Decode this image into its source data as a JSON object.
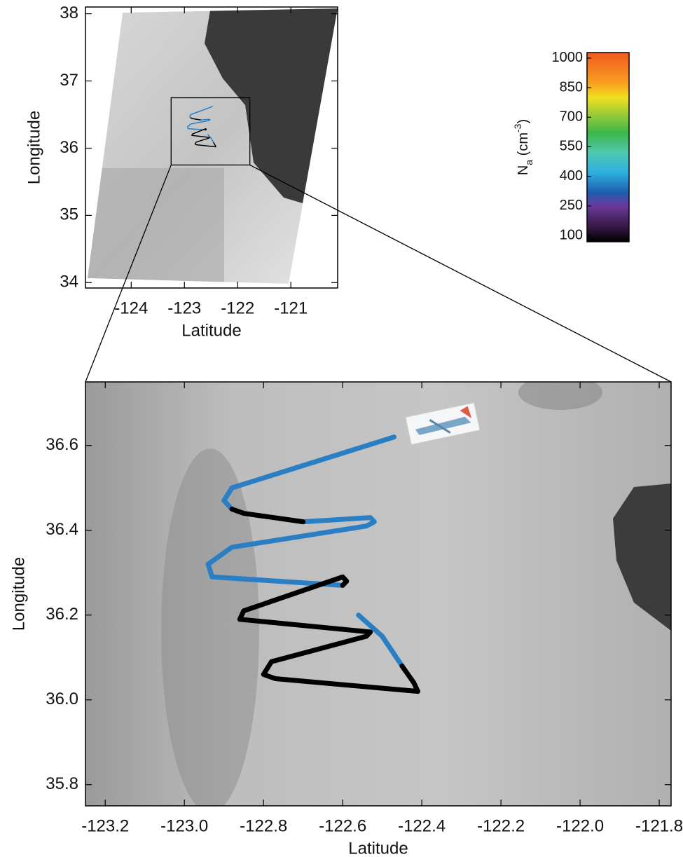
{
  "chart_data": [
    {
      "type": "map",
      "xlabel": "Latitude",
      "ylabel": "Longitude",
      "xlim": [
        -124.86,
        -120.12
      ],
      "xticks": [
        -124,
        -123,
        -122,
        -121
      ],
      "ylim": [
        33.92,
        38.1
      ],
      "yticks": [
        34,
        35,
        36,
        37,
        38
      ]
    },
    {
      "type": "map",
      "xlabel": "Latitude",
      "ylabel": "Longitude",
      "xlim": [
        -123.25,
        -121.77
      ],
      "xticks": [
        -123.2,
        {
          "value": -123,
          "label": "-123.0"
        },
        -122.8,
        -122.6,
        -122.4,
        -122.2,
        {
          "value": -122,
          "label": "-122.0"
        },
        -121.8
      ],
      "ylim": [
        35.75,
        36.75
      ],
      "yticks": [
        35.8,
        {
          "value": 36,
          "label": "36.0"
        },
        36.2,
        36.4,
        36.6
      ],
      "series": [
        {
          "color": "#2a7fc4",
          "x": [
            -122.47,
            -122.88,
            -122.9,
            -122.88,
            null,
            -122.7,
            -122.53,
            -122.52,
            -122.54,
            -122.88,
            -122.94,
            -122.93,
            -122.6,
            null,
            -122.56,
            -122.5,
            -122.45
          ],
          "y": [
            36.62,
            36.5,
            36.47,
            36.45,
            null,
            36.42,
            36.43,
            36.42,
            36.41,
            36.36,
            36.32,
            36.29,
            36.27,
            null,
            36.2,
            36.15,
            36.08
          ]
        },
        {
          "color": "#000000",
          "x": [
            -122.88,
            -122.85,
            -122.7,
            null,
            -122.6,
            -122.59,
            -122.6,
            -122.85,
            -122.86,
            -122.53,
            -122.54,
            -122.78,
            -122.8,
            -122.77,
            -122.41,
            -122.42,
            -122.45
          ],
          "y": [
            36.45,
            36.44,
            36.42,
            null,
            36.27,
            36.28,
            36.29,
            36.21,
            36.19,
            36.16,
            36.15,
            36.09,
            36.06,
            36.05,
            36.02,
            36.04,
            36.08
          ]
        }
      ]
    },
    {
      "type": "colorbar",
      "label": {
        "symbol": "N",
        "subscript": "a",
        "unit_open": " (cm",
        "superscript": "-3",
        "unit_close": ")"
      },
      "ylim": [
        68,
        1028
      ],
      "yticks": [
        100,
        250,
        400,
        550,
        700,
        850,
        1000
      ],
      "colorscale": [
        {
          "value": 68,
          "color": "#000000"
        },
        {
          "value": 150,
          "color": "#3a1a4a"
        },
        {
          "value": 250,
          "color": "#6a3a9a"
        },
        {
          "value": 320,
          "color": "#1e5fb0"
        },
        {
          "value": 420,
          "color": "#2fb0e0"
        },
        {
          "value": 520,
          "color": "#4fc8b0"
        },
        {
          "value": 620,
          "color": "#3cb84a"
        },
        {
          "value": 700,
          "color": "#8cc83c"
        },
        {
          "value": 800,
          "color": "#f0e020"
        },
        {
          "value": 870,
          "color": "#f8a020"
        },
        {
          "value": 1028,
          "color": "#f05a20"
        }
      ]
    }
  ]
}
